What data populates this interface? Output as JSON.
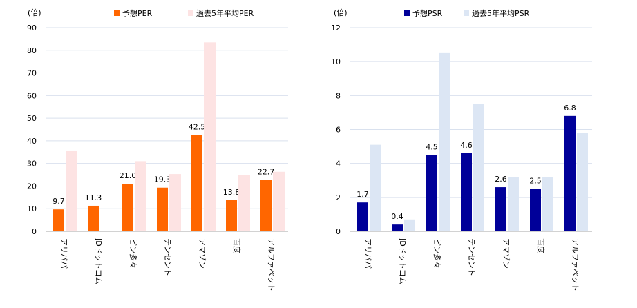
{
  "chart_data": [
    {
      "type": "bar",
      "unit_label": "(倍)",
      "categories": [
        "アリババ",
        "JDドットコム",
        "ピン多々",
        "テンセント",
        "アマゾン",
        "百度",
        "アルファベット"
      ],
      "series": [
        {
          "name": "予想PER",
          "color": "#FF6600",
          "values": [
            9.7,
            11.3,
            21.0,
            19.3,
            42.5,
            13.8,
            22.7
          ],
          "labels": [
            "9.7",
            "11.3",
            "21.0",
            "19.3",
            "42.5",
            "13.8",
            "22.7"
          ]
        },
        {
          "name": "過去5年平均PER",
          "color": "#FDE3E3",
          "values": [
            35.7,
            0,
            31.0,
            25.3,
            83.5,
            24.8,
            26.3
          ],
          "labels": null
        }
      ],
      "yticks": [
        "0",
        "10",
        "20",
        "30",
        "40",
        "50",
        "60",
        "70",
        "80",
        "90"
      ],
      "ylim": [
        0,
        90
      ],
      "legend": "top"
    },
    {
      "type": "bar",
      "unit_label": "(倍)",
      "categories": [
        "アリババ",
        "JDドットコム",
        "ピン多々",
        "テンセント",
        "アマゾン",
        "百度",
        "アルファベット"
      ],
      "series": [
        {
          "name": "予想PSR",
          "color": "#000099",
          "values": [
            1.7,
            0.4,
            4.5,
            4.6,
            2.6,
            2.5,
            6.8
          ],
          "labels": [
            "1.7",
            "0.4",
            "4.5",
            "4.6",
            "2.6",
            "2.5",
            "6.8"
          ]
        },
        {
          "name": "過去5年平均PSR",
          "color": "#DCE6F4",
          "values": [
            5.1,
            0.7,
            10.5,
            7.5,
            3.2,
            3.2,
            5.8
          ],
          "labels": null
        }
      ],
      "yticks": [
        "0",
        "2",
        "4",
        "6",
        "8",
        "10",
        "12"
      ],
      "ylim": [
        0,
        12
      ],
      "legend": "top"
    }
  ]
}
